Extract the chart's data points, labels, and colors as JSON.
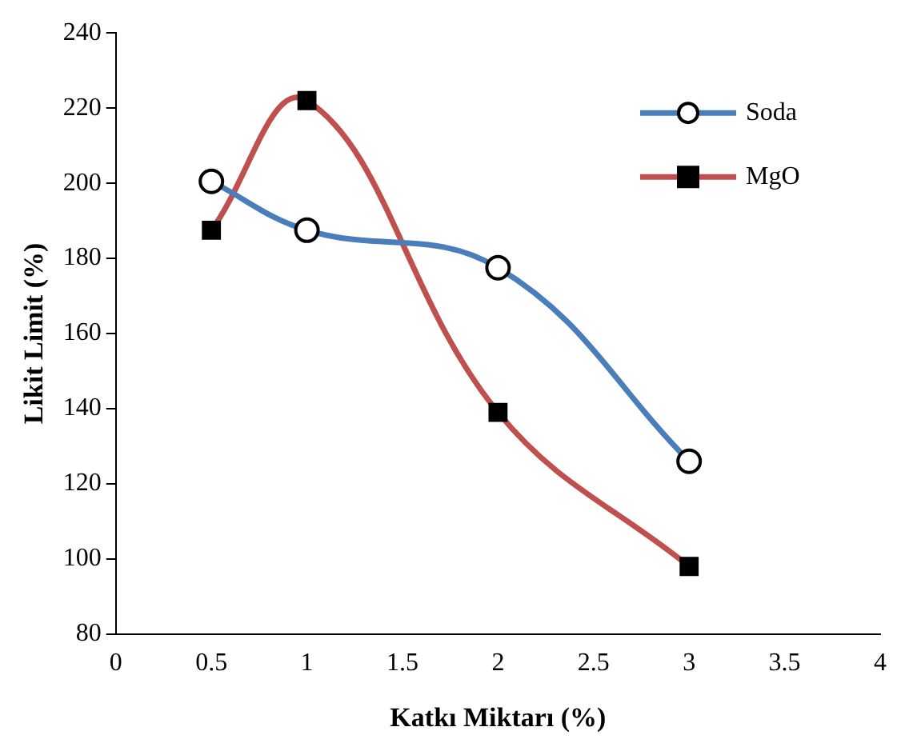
{
  "chart_data": {
    "type": "line",
    "xlabel": "Katkı Miktarı (%)",
    "ylabel": "Likit Limit (%)",
    "xlim": [
      0,
      4
    ],
    "xticks": [
      0,
      0.5,
      1,
      1.5,
      2,
      2.5,
      3,
      3.5,
      4
    ],
    "ylim": [
      80,
      240
    ],
    "yticks": [
      80,
      100,
      120,
      140,
      160,
      180,
      200,
      220,
      240
    ],
    "grid": false,
    "legend": "top right",
    "line_style": "solid",
    "series": [
      {
        "name": "Soda",
        "color": "#4a7ebb",
        "marker": "circle",
        "x": [
          0.5,
          1,
          2,
          3
        ],
        "values": [
          200.5,
          187.5,
          177.5,
          126
        ]
      },
      {
        "name": "MgO",
        "color": "#c0504d",
        "marker": "square",
        "x": [
          0.5,
          1,
          2,
          3
        ],
        "values": [
          187.5,
          222,
          139,
          98
        ]
      }
    ]
  }
}
